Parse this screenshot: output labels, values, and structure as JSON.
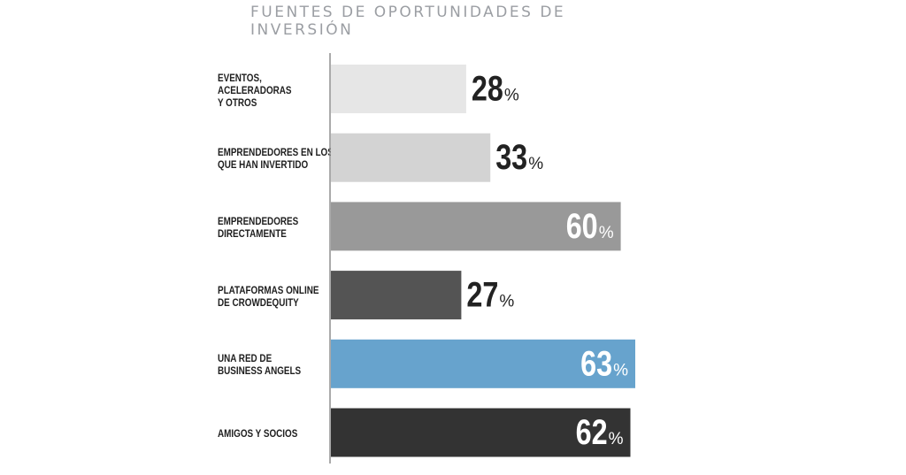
{
  "chart_data": {
    "type": "bar",
    "orientation": "horizontal",
    "title": "FUENTES DE OPORTUNIDADES DE INVERSIÓN",
    "xlabel": "",
    "ylabel": "",
    "xlim": [
      0,
      100
    ],
    "grid": false,
    "legend": "none",
    "value_suffix": "%",
    "categories": [
      [
        "EVENTOS,",
        "ACELERADORAS",
        "Y OTROS"
      ],
      [
        "EMPRENDEDORES EN LOS",
        "QUE HAN INVERTIDO"
      ],
      [
        "EMPRENDEDORES",
        "DIRECTAMENTE"
      ],
      [
        "PLATAFORMAS ONLINE",
        "DE CROWDEQUITY"
      ],
      [
        "UNA RED DE",
        "BUSINESS ANGELS"
      ],
      [
        "AMIGOS Y SOCIOS"
      ]
    ],
    "values": [
      28,
      33,
      60,
      27,
      63,
      62
    ],
    "value_labels": [
      "28",
      "33",
      "60",
      "27",
      "63",
      "62"
    ],
    "bar_colors": [
      "#e6e6e6",
      "#d3d3d3",
      "#999999",
      "#545454",
      "#67a3cd",
      "#333333"
    ],
    "label_inside": [
      false,
      false,
      true,
      false,
      true,
      true
    ],
    "label_colors": [
      "#222222",
      "#222222",
      "#ffffff",
      "#222222",
      "#ffffff",
      "#ffffff"
    ]
  }
}
